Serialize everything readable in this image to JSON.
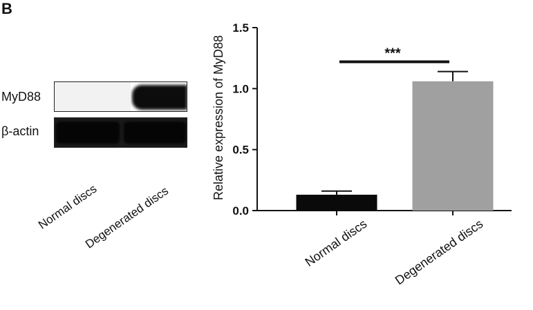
{
  "panel_label": "B",
  "blot": {
    "rows": [
      {
        "label": "MyD88"
      },
      {
        "label": "β-actin"
      }
    ],
    "lanes": [
      "Normal discs",
      "Degenerated discs"
    ]
  },
  "chart_data": {
    "type": "bar",
    "title": "",
    "xlabel": "",
    "ylabel": "Relative expression of MyD88",
    "categories": [
      "Normal discs",
      "Degenerated discs"
    ],
    "values": [
      0.13,
      1.06
    ],
    "errors": [
      0.03,
      0.08
    ],
    "colors": [
      "#0a0a0a",
      "#a0a0a0"
    ],
    "ylim": [
      0,
      1.5
    ],
    "yticks": [
      "0.0",
      "0.5",
      "1.0",
      "1.5"
    ],
    "significance": "***",
    "grid": false,
    "legend": "none"
  }
}
